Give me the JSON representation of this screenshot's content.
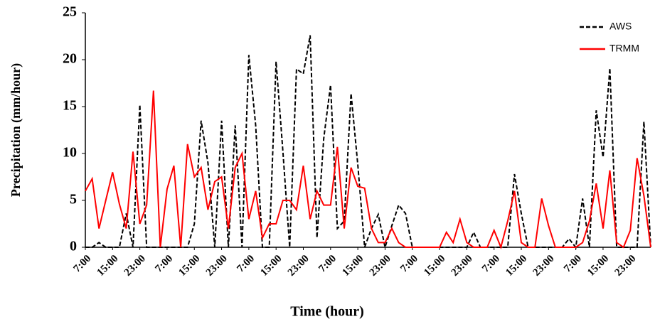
{
  "chart_data": {
    "type": "line",
    "xlabel": "Time (hour)",
    "ylabel": "Precipitation (mm/hour)",
    "categories": [
      "7:00",
      null,
      null,
      null,
      "15:00",
      null,
      null,
      null,
      "23:00",
      null,
      null,
      null,
      "7:00",
      null,
      null,
      null,
      "15:00",
      null,
      null,
      null,
      "23:00",
      null,
      null,
      null,
      "7:00",
      null,
      null,
      null,
      "15:00",
      null,
      null,
      null,
      "23:00",
      null,
      null,
      null,
      "7:00",
      null,
      null,
      null,
      "15:00",
      null,
      null,
      null,
      "23:00",
      null,
      null,
      null,
      "7:00",
      null,
      null,
      null,
      "15:00",
      null,
      null,
      null,
      "23:00",
      null,
      null,
      null,
      "7:00",
      null,
      null,
      null,
      "15:00",
      null,
      null,
      null,
      "23:00",
      null,
      null,
      null,
      "7:00",
      null,
      null,
      null,
      "15:00",
      null,
      null,
      null,
      "23:00",
      null,
      null,
      null
    ],
    "series": [
      {
        "name": "AWS",
        "color": "#000000",
        "linestyle": "dashed",
        "values": [
          0,
          0,
          0.5,
          0,
          0,
          0,
          3.6,
          0,
          15.2,
          0,
          0,
          0,
          0,
          0,
          0,
          0,
          2.5,
          13.5,
          9,
          0,
          13.5,
          0,
          13,
          0,
          20.5,
          13,
          0,
          0,
          19.8,
          10.2,
          0,
          19,
          18.5,
          22.6,
          1,
          11.6,
          17.3,
          2,
          2.8,
          16.4,
          8.8,
          0,
          2,
          3.5,
          0,
          2.3,
          4.5,
          3.6,
          0,
          0,
          0,
          0,
          0,
          0,
          0,
          0,
          0,
          1.6,
          0,
          0,
          0,
          0,
          0,
          7.8,
          3.6,
          0,
          0,
          0,
          0,
          0,
          0,
          0.9,
          0,
          5.2,
          0,
          14.6,
          9.6,
          19.1,
          0,
          0,
          0,
          0,
          13.4,
          0
        ]
      },
      {
        "name": "TRMM",
        "color": "#ff0000",
        "linestyle": "solid",
        "values": [
          6,
          7.3,
          2,
          5,
          8,
          4.6,
          2,
          10.2,
          2.5,
          4.5,
          16.7,
          0,
          6.2,
          8.7,
          0,
          11,
          7.5,
          8.5,
          4,
          7,
          7.5,
          2,
          8.5,
          10,
          3,
          6,
          1,
          2.5,
          2.5,
          5,
          5,
          4,
          8.7,
          3,
          6,
          4.5,
          4.5,
          10.7,
          2,
          8.5,
          6.5,
          6.3,
          2,
          0.5,
          0.5,
          2,
          0.5,
          0,
          0,
          0,
          0,
          0,
          0,
          1.6,
          0.5,
          3,
          0.5,
          0,
          0,
          0,
          1.8,
          0,
          2.8,
          6,
          0.5,
          0,
          0,
          5.2,
          2.3,
          0,
          0,
          0,
          0,
          0.5,
          2.8,
          6.8,
          2,
          8.2,
          0.5,
          0,
          1.8,
          9.5,
          5.5,
          0
        ]
      }
    ],
    "ylim": [
      0,
      25
    ],
    "yticks": [
      0,
      5,
      10,
      15,
      20,
      25
    ],
    "legend": "upper right",
    "grid": false
  }
}
